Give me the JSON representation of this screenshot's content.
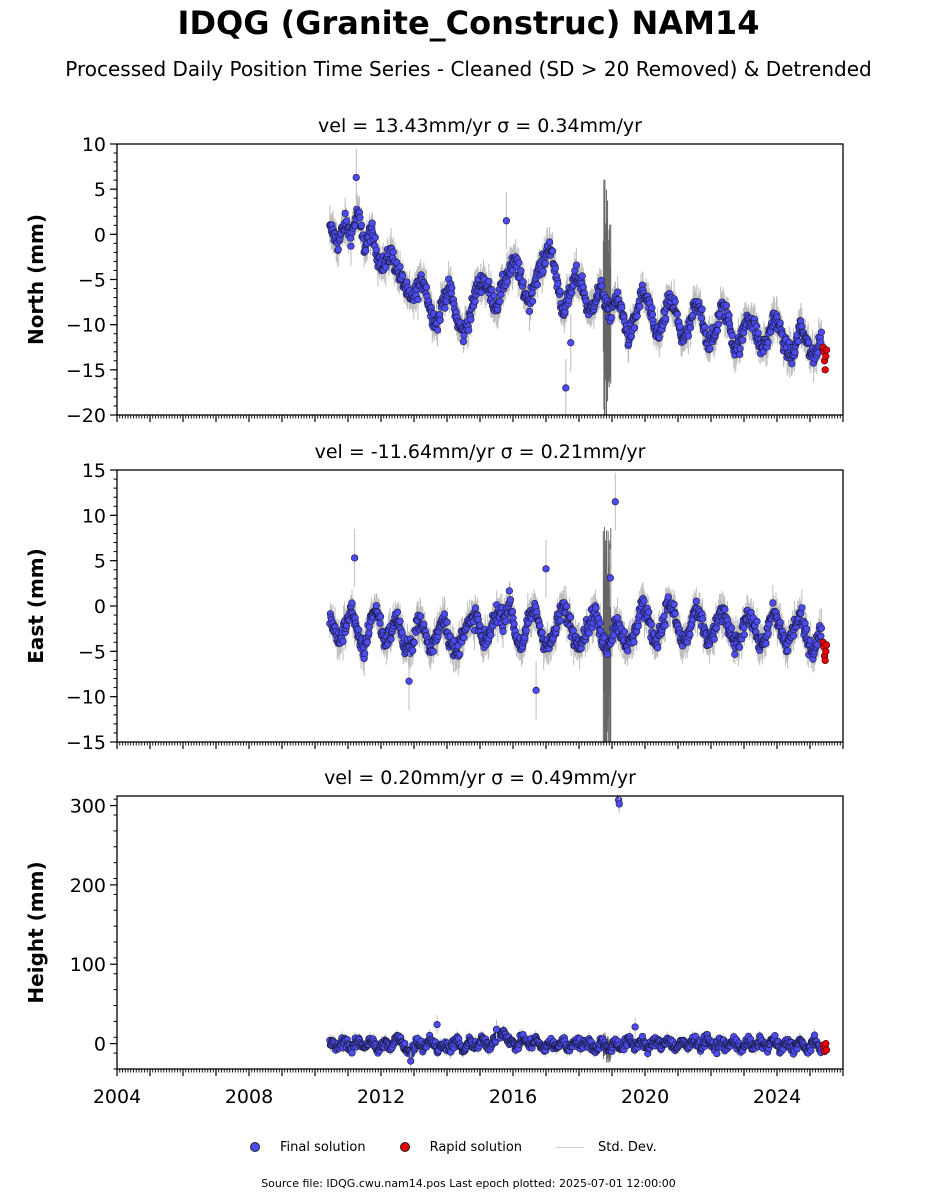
{
  "title": "IDQG (Granite_Construc) NAM14",
  "subtitle": "Processed Daily Position Time Series - Cleaned (SD > 20 Removed) & Detrended",
  "footer": "Source file: IDQG.cwu.nam14.pos  Last epoch plotted: 2025-07-01 12:00:00",
  "legend": {
    "final": "Final solution",
    "rapid": "Rapid solution",
    "std": "Std. Dev."
  },
  "colors": {
    "final": "#4b4bf0",
    "rapid": "#e8000b",
    "std": "#bdbdbd",
    "edge": "#1a1a3a"
  },
  "chart_data": [
    {
      "type": "scatter",
      "component": "north",
      "title": "vel = 13.43mm/yr   σ = 0.34mm/yr",
      "ylabel": "North (mm)",
      "xlim": [
        2004.0,
        2026.0
      ],
      "ylim": [
        -20,
        10
      ],
      "yticks": [
        -20,
        -15,
        -10,
        -5,
        0,
        5,
        10
      ],
      "xticks": [
        2004,
        2008,
        2012,
        2016,
        2020,
        2024
      ],
      "tick_labels_y": [
        "−20",
        "−15",
        "−10",
        "−5",
        "0",
        "5",
        "10"
      ],
      "series": [
        {
          "name": "Final solution",
          "x": [
            2010.5,
            2010.7,
            2010.9,
            2011.1,
            2011.3,
            2011.5,
            2011.7,
            2011.9,
            2012.1,
            2012.3,
            2012.5,
            2012.7,
            2012.9,
            2013.1,
            2013.3,
            2013.5,
            2013.7,
            2013.9,
            2014.1,
            2014.3,
            2014.5,
            2014.7,
            2014.9,
            2015.1,
            2015.3,
            2015.5,
            2015.7,
            2015.9,
            2016.1,
            2016.3,
            2016.5,
            2016.7,
            2016.9,
            2017.1,
            2017.3,
            2017.5,
            2017.7,
            2017.9,
            2018.1,
            2018.3,
            2018.5,
            2018.7,
            2018.9,
            2019.1,
            2019.3,
            2019.5,
            2019.7,
            2019.9,
            2020.1,
            2020.3,
            2020.5,
            2020.7,
            2020.9,
            2021.1,
            2021.3,
            2021.5,
            2021.7,
            2021.9,
            2022.1,
            2022.3,
            2022.5,
            2022.7,
            2022.9,
            2023.1,
            2023.3,
            2023.5,
            2023.7,
            2023.9,
            2024.1,
            2024.3,
            2024.5,
            2024.7,
            2024.9,
            2025.1,
            2025.3
          ],
          "y": [
            0.5,
            -1.0,
            1.2,
            0.0,
            2.5,
            -1.5,
            0.5,
            -2.5,
            -3.5,
            -2.0,
            -4.0,
            -5.5,
            -7.5,
            -6.0,
            -5.0,
            -8.5,
            -10.0,
            -7.0,
            -6.0,
            -9.5,
            -11.0,
            -9.0,
            -6.0,
            -5.0,
            -6.5,
            -8.0,
            -5.5,
            -4.0,
            -3.0,
            -6.0,
            -7.5,
            -4.5,
            -3.5,
            -1.0,
            -4.5,
            -8.5,
            -7.0,
            -4.5,
            -5.5,
            -9.0,
            -7.0,
            -6.0,
            -9.0,
            -7.0,
            -8.5,
            -11.5,
            -9.5,
            -6.5,
            -7.5,
            -11.0,
            -10.5,
            -7.5,
            -8.0,
            -11.5,
            -11.0,
            -8.0,
            -8.5,
            -12.0,
            -11.5,
            -8.0,
            -9.0,
            -12.5,
            -12.0,
            -9.0,
            -10.0,
            -12.5,
            -12.0,
            -9.0,
            -10.5,
            -13.0,
            -13.5,
            -10.0,
            -12.0,
            -14.0,
            -11.5
          ]
        },
        {
          "name": "Rapid solution",
          "x": [
            2025.4,
            2025.42,
            2025.44,
            2025.46,
            2025.48,
            2025.5
          ],
          "y": [
            -12.5,
            -13.0,
            -14.0,
            -15.0,
            -13.5,
            -12.8
          ]
        }
      ],
      "outliers": {
        "x": [
          2015.8,
          2011.25,
          2017.6,
          2017.75
        ],
        "y": [
          1.5,
          6.3,
          -17.0,
          -12.0
        ]
      }
    },
    {
      "type": "scatter",
      "component": "east",
      "title": "vel = -11.64mm/yr   σ = 0.21mm/yr",
      "ylabel": "East (mm)",
      "xlim": [
        2004.0,
        2026.0
      ],
      "ylim": [
        -15,
        15
      ],
      "yticks": [
        -15,
        -10,
        -5,
        0,
        5,
        10,
        15
      ],
      "xticks": [
        2004,
        2008,
        2012,
        2016,
        2020,
        2024
      ],
      "tick_labels_y": [
        "−15",
        "−10",
        "−5",
        "0",
        "5",
        "10",
        "15"
      ],
      "series": [
        {
          "name": "Final solution",
          "x": [
            2010.5,
            2010.7,
            2010.9,
            2011.1,
            2011.3,
            2011.5,
            2011.7,
            2011.9,
            2012.1,
            2012.3,
            2012.5,
            2012.7,
            2012.9,
            2013.1,
            2013.3,
            2013.5,
            2013.7,
            2013.9,
            2014.1,
            2014.3,
            2014.5,
            2014.7,
            2014.9,
            2015.1,
            2015.3,
            2015.5,
            2015.7,
            2015.9,
            2016.1,
            2016.3,
            2016.5,
            2016.7,
            2016.9,
            2017.1,
            2017.3,
            2017.5,
            2017.7,
            2017.9,
            2018.1,
            2018.3,
            2018.5,
            2018.7,
            2018.9,
            2019.1,
            2019.3,
            2019.5,
            2019.7,
            2019.9,
            2020.1,
            2020.3,
            2020.5,
            2020.7,
            2020.9,
            2021.1,
            2021.3,
            2021.5,
            2021.7,
            2021.9,
            2022.1,
            2022.3,
            2022.5,
            2022.7,
            2022.9,
            2023.1,
            2023.3,
            2023.5,
            2023.7,
            2023.9,
            2024.1,
            2024.3,
            2024.5,
            2024.7,
            2024.9,
            2025.1,
            2025.3
          ],
          "y": [
            -1.5,
            -4.0,
            -2.5,
            0.0,
            -3.5,
            -5.0,
            -1.0,
            -0.5,
            -4.0,
            -3.0,
            -1.0,
            -4.5,
            -5.0,
            -1.5,
            -2.5,
            -5.0,
            -3.0,
            -1.0,
            -4.0,
            -5.5,
            -2.5,
            -2.0,
            -1.0,
            -4.5,
            -3.0,
            -0.5,
            -1.5,
            0.5,
            -3.5,
            -4.5,
            -1.0,
            -0.5,
            -3.5,
            -4.5,
            -2.5,
            0.0,
            -1.5,
            -4.0,
            -3.5,
            -2.0,
            -0.5,
            -4.0,
            -4.5,
            -1.5,
            -3.0,
            -4.5,
            -3.0,
            0.5,
            -1.5,
            -4.0,
            -2.5,
            0.5,
            -1.0,
            -4.0,
            -3.5,
            -0.5,
            -1.5,
            -4.0,
            -3.0,
            -0.5,
            -2.0,
            -4.5,
            -3.5,
            -0.5,
            -2.0,
            -4.5,
            -3.0,
            -0.5,
            -2.5,
            -4.5,
            -2.5,
            -1.0,
            -3.5,
            -5.0,
            -3.0
          ]
        },
        {
          "name": "Rapid solution",
          "x": [
            2025.4,
            2025.42,
            2025.44,
            2025.46,
            2025.48,
            2025.5
          ],
          "y": [
            -4.0,
            -4.5,
            -5.5,
            -6.0,
            -5.0,
            -4.3
          ]
        }
      ],
      "outliers": {
        "x": [
          2011.2,
          2019.1,
          2012.85,
          2016.7,
          2017.0,
          2018.95
        ],
        "y": [
          5.3,
          11.5,
          -8.3,
          -9.3,
          4.1,
          3.1
        ]
      }
    },
    {
      "type": "scatter",
      "component": "height",
      "title": "vel = 0.20mm/yr   σ = 0.49mm/yr",
      "ylabel": "Height (mm)",
      "xlim": [
        2004.0,
        2026.0
      ],
      "ylim": [
        -32,
        312
      ],
      "yticks": [
        0,
        100,
        200,
        300
      ],
      "xticks": [
        2004,
        2008,
        2012,
        2016,
        2020,
        2024
      ],
      "tick_labels_y": [
        "0",
        "100",
        "200",
        "300"
      ],
      "tick_labels_x": [
        "2004",
        "2008",
        "2012",
        "2016",
        "2020",
        "2024"
      ],
      "series": [
        {
          "name": "Final solution",
          "x": [
            2010.5,
            2010.7,
            2010.9,
            2011.1,
            2011.3,
            2011.5,
            2011.7,
            2011.9,
            2012.1,
            2012.3,
            2012.5,
            2012.7,
            2012.9,
            2013.1,
            2013.3,
            2013.5,
            2013.7,
            2013.9,
            2014.1,
            2014.3,
            2014.5,
            2014.7,
            2014.9,
            2015.1,
            2015.3,
            2015.5,
            2015.7,
            2015.9,
            2016.1,
            2016.3,
            2016.5,
            2016.7,
            2016.9,
            2017.1,
            2017.3,
            2017.5,
            2017.7,
            2017.9,
            2018.1,
            2018.3,
            2018.5,
            2018.7,
            2018.9,
            2019.1,
            2019.3,
            2019.5,
            2019.7,
            2019.9,
            2020.1,
            2020.3,
            2020.5,
            2020.7,
            2020.9,
            2021.1,
            2021.3,
            2021.5,
            2021.7,
            2021.9,
            2022.1,
            2022.3,
            2022.5,
            2022.7,
            2022.9,
            2023.1,
            2023.3,
            2023.5,
            2023.7,
            2023.9,
            2024.1,
            2024.3,
            2024.5,
            2024.7,
            2024.9,
            2025.1,
            2025.3
          ],
          "y": [
            0,
            -5,
            5,
            -8,
            3,
            -4,
            6,
            -10,
            2,
            -6,
            8,
            -3,
            -12,
            4,
            -5,
            7,
            -8,
            0,
            -6,
            5,
            -10,
            3,
            -4,
            6,
            -7,
            10,
            15,
            4,
            -5,
            8,
            -3,
            6,
            -8,
            2,
            -5,
            4,
            -7,
            5,
            -3,
            2,
            -8,
            4,
            -10,
            3,
            -6,
            5,
            -4,
            6,
            -8,
            4,
            -3,
            7,
            -6,
            2,
            -5,
            6,
            -4,
            8,
            -7,
            3,
            -5,
            5,
            -8,
            4,
            -6,
            3,
            -5,
            6,
            -9,
            2,
            -6,
            4,
            -10,
            3,
            -4
          ]
        },
        {
          "name": "Rapid solution",
          "x": [
            2025.4,
            2025.42,
            2025.44,
            2025.46,
            2025.48,
            2025.5
          ],
          "y": [
            -2,
            -6,
            -10,
            -4,
            0,
            -8
          ]
        }
      ],
      "outliers": {
        "x": [
          2019.2,
          2019.22,
          2013.7,
          2019.7,
          2012.9,
          2015.5
        ],
        "y": [
          307,
          302,
          24,
          21,
          -22,
          18
        ]
      }
    }
  ]
}
